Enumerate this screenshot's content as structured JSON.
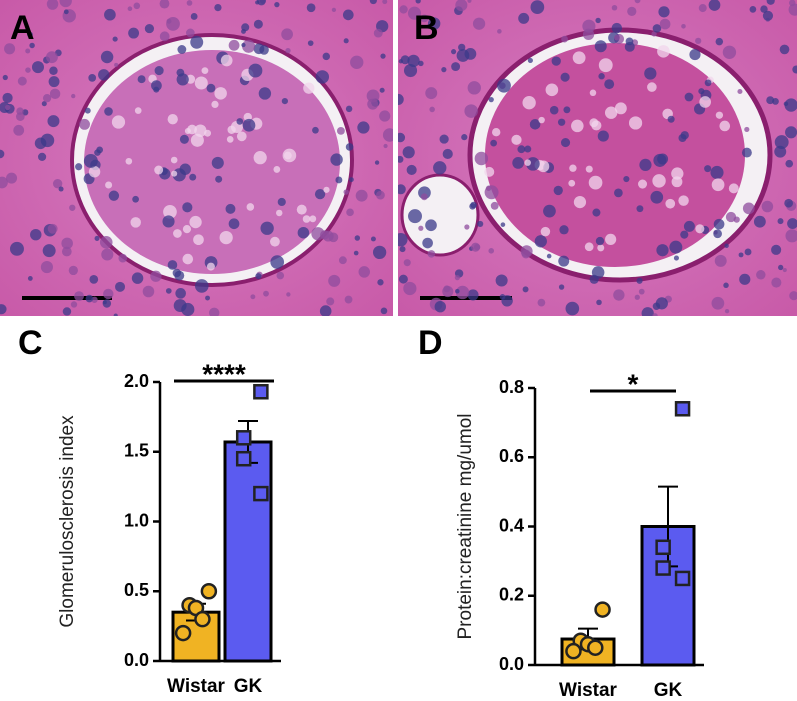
{
  "images": [
    {
      "label": "A"
    },
    {
      "label": "B"
    }
  ],
  "chart_data": [
    {
      "type": "bar",
      "panel_label": "C",
      "ylabel": "Glomerulosclerosis index",
      "categories": [
        "Wistar",
        "GK"
      ],
      "values": [
        0.35,
        1.57
      ],
      "errors": [
        0.06,
        0.15
      ],
      "colors": [
        "#f0b323",
        "#5b5bf0"
      ],
      "markers": [
        "circle",
        "square"
      ],
      "points": [
        [
          0.5,
          0.4,
          0.38,
          0.3,
          0.2
        ],
        [
          1.93,
          1.6,
          1.45,
          1.2
        ]
      ],
      "ylim": [
        0,
        2
      ],
      "yticks": [
        {
          "value": 0,
          "label": "0.0"
        },
        0.5,
        {
          "value": 1,
          "label": "1.0"
        },
        1.5,
        {
          "value": 2,
          "label": "2.0"
        }
      ],
      "significance": "****"
    },
    {
      "type": "bar",
      "panel_label": "D",
      "ylabel": "Protein:creatinine mg/umol",
      "categories": [
        "Wistar",
        "GK"
      ],
      "values": [
        0.075,
        0.4
      ],
      "errors": [
        0.03,
        0.115
      ],
      "colors": [
        "#f0b323",
        "#5b5bf0"
      ],
      "markers": [
        "circle",
        "square"
      ],
      "points": [
        [
          0.16,
          0.07,
          0.06,
          0.05,
          0.04
        ],
        [
          0.74,
          0.34,
          0.28,
          0.25
        ]
      ],
      "ylim": [
        0,
        0.8
      ],
      "yticks": [
        {
          "value": 0,
          "label": "0.0"
        },
        0.2,
        0.4,
        0.6,
        0.8
      ],
      "significance": "*"
    }
  ]
}
